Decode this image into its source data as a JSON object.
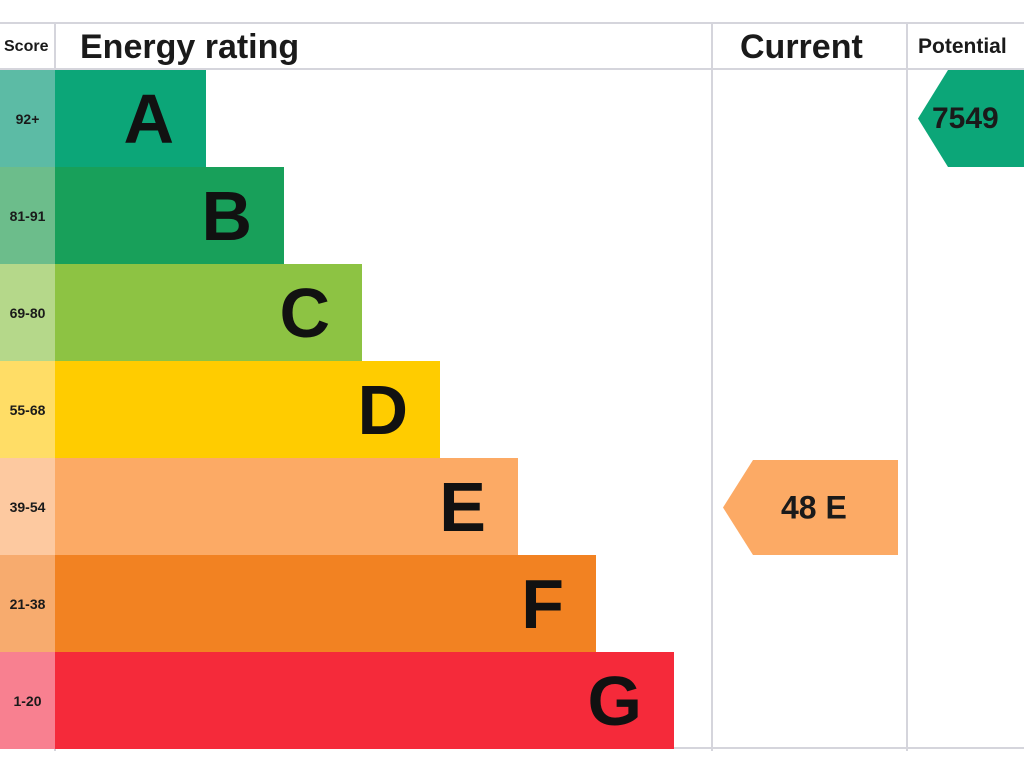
{
  "chart_data": {
    "type": "bar",
    "headers": {
      "score": "Score",
      "rating": "Energy rating",
      "current": "Current",
      "potential": "Potential"
    },
    "bands": [
      {
        "letter": "A",
        "range": "92+",
        "color": "#0ca678",
        "light": "#5cbba5"
      },
      {
        "letter": "B",
        "range": "81-91",
        "color": "#18a05a",
        "light": "#6cbd8b"
      },
      {
        "letter": "C",
        "range": "69-80",
        "color": "#8dc343",
        "light": "#b5d88a"
      },
      {
        "letter": "D",
        "range": "55-68",
        "color": "#ffcc00",
        "light": "#ffdd66"
      },
      {
        "letter": "E",
        "range": "39-54",
        "color": "#fcaa65",
        "light": "#fdc9a0"
      },
      {
        "letter": "F",
        "range": "21-38",
        "color": "#f28222",
        "light": "#f7ab6e"
      },
      {
        "letter": "G",
        "range": "1-20",
        "color": "#f52a3a",
        "light": "#f88090"
      }
    ],
    "current": {
      "value": 48,
      "band": "E",
      "label": "48  E",
      "color": "#fcaa65"
    },
    "potential": {
      "value": "7549",
      "band": "A",
      "label": "7549",
      "color": "#0ca678"
    }
  }
}
